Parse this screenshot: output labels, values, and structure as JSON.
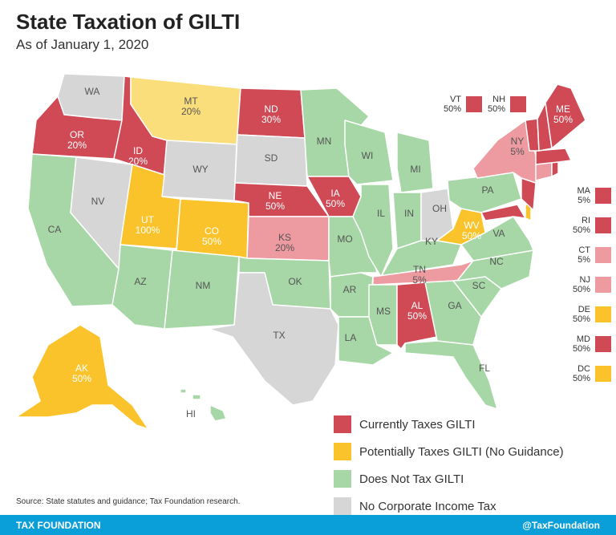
{
  "title": "State Taxation of GILTI",
  "subtitle": "As of January 1, 2020",
  "colors": {
    "taxes": "#cf4a55",
    "taxes_light": "#ed9aa1",
    "potential": "#fbc32b",
    "potential_light": "#fbde7c",
    "no_tax": "#a7d7a6",
    "no_cit": "#d6d6d6",
    "footer": "#0b9fd9"
  },
  "states": {
    "WA": {
      "name": "WA",
      "value": ""
    },
    "OR": {
      "name": "OR",
      "value": "20%"
    },
    "CA": {
      "name": "CA",
      "value": ""
    },
    "NV": {
      "name": "NV",
      "value": ""
    },
    "ID": {
      "name": "ID",
      "value": "20%"
    },
    "MT": {
      "name": "MT",
      "value": "20%"
    },
    "WY": {
      "name": "WY",
      "value": ""
    },
    "UT": {
      "name": "UT",
      "value": "100%"
    },
    "CO": {
      "name": "CO",
      "value": "50%"
    },
    "AZ": {
      "name": "AZ",
      "value": ""
    },
    "NM": {
      "name": "NM",
      "value": ""
    },
    "ND": {
      "name": "ND",
      "value": "30%"
    },
    "SD": {
      "name": "SD",
      "value": ""
    },
    "NE": {
      "name": "NE",
      "value": "50%"
    },
    "KS": {
      "name": "KS",
      "value": "20%"
    },
    "OK": {
      "name": "OK",
      "value": ""
    },
    "TX": {
      "name": "TX",
      "value": ""
    },
    "MN": {
      "name": "MN",
      "value": ""
    },
    "IA": {
      "name": "IA",
      "value": "50%"
    },
    "MO": {
      "name": "MO",
      "value": ""
    },
    "AR": {
      "name": "AR",
      "value": ""
    },
    "LA": {
      "name": "LA",
      "value": ""
    },
    "WI": {
      "name": "WI",
      "value": ""
    },
    "IL": {
      "name": "IL",
      "value": ""
    },
    "MI": {
      "name": "MI",
      "value": ""
    },
    "IN": {
      "name": "IN",
      "value": ""
    },
    "OH": {
      "name": "OH",
      "value": ""
    },
    "KY": {
      "name": "KY",
      "value": ""
    },
    "TN": {
      "name": "TN",
      "value": "5%"
    },
    "MS": {
      "name": "MS",
      "value": ""
    },
    "AL": {
      "name": "AL",
      "value": "50%"
    },
    "GA": {
      "name": "GA",
      "value": ""
    },
    "FL": {
      "name": "FL",
      "value": ""
    },
    "SC": {
      "name": "SC",
      "value": ""
    },
    "NC": {
      "name": "NC",
      "value": ""
    },
    "VA": {
      "name": "VA",
      "value": ""
    },
    "WV": {
      "name": "WV",
      "value": "50%"
    },
    "PA": {
      "name": "PA",
      "value": ""
    },
    "NY": {
      "name": "NY",
      "value": "5%"
    },
    "ME": {
      "name": "ME",
      "value": "50%"
    },
    "AK": {
      "name": "AK",
      "value": "50%"
    },
    "HI": {
      "name": "HI",
      "value": ""
    }
  },
  "top_boxes": [
    {
      "name": "VT",
      "value": "50%"
    },
    {
      "name": "NH",
      "value": "50%"
    }
  ],
  "side_boxes": [
    {
      "name": "MA",
      "value": "5%"
    },
    {
      "name": "RI",
      "value": "50%"
    },
    {
      "name": "CT",
      "value": "5%"
    },
    {
      "name": "NJ",
      "value": "50%"
    },
    {
      "name": "DE",
      "value": "50%"
    },
    {
      "name": "MD",
      "value": "50%"
    },
    {
      "name": "DC",
      "value": "50%"
    }
  ],
  "legend": [
    {
      "label": "Currently Taxes GILTI"
    },
    {
      "label": "Potentially Taxes GILTI (No Guidance)"
    },
    {
      "label": "Does Not Tax GILTI"
    },
    {
      "label": "No Corporate Income Tax"
    }
  ],
  "source": "Source: State statutes and guidance; Tax Foundation research.",
  "footer": {
    "left": "TAX FOUNDATION",
    "right": "@TaxFoundation"
  }
}
